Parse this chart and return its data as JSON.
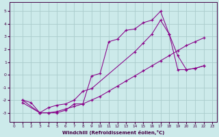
{
  "bg_color": "#cceaea",
  "grid_color": "#aacccc",
  "line_color": "#880088",
  "xlabel": "Windchill (Refroidissement éolien,°C)",
  "xlim": [
    -0.5,
    23.5
  ],
  "ylim": [
    -3.7,
    5.7
  ],
  "yticks": [
    -3,
    -2,
    -1,
    0,
    1,
    2,
    3,
    4,
    5
  ],
  "xticks": [
    0,
    1,
    2,
    3,
    4,
    5,
    6,
    7,
    8,
    9,
    10,
    11,
    12,
    13,
    14,
    15,
    16,
    17,
    18,
    19,
    20,
    21,
    22,
    23
  ],
  "line1_x": [
    1,
    2,
    3,
    4,
    5,
    6,
    7,
    8,
    9,
    10,
    11,
    12,
    13,
    14,
    15,
    16,
    17,
    18,
    19,
    20,
    21,
    22
  ],
  "line1_y": [
    -2.0,
    -2.2,
    -3.0,
    -3.0,
    -3.0,
    -2.8,
    -2.3,
    -2.3,
    -0.1,
    0.1,
    2.6,
    2.8,
    3.5,
    3.6,
    4.1,
    4.3,
    5.0,
    3.2,
    0.4,
    0.4,
    0.5,
    0.7
  ],
  "line2_x": [
    1,
    3,
    4,
    5,
    6,
    7,
    8,
    9,
    14,
    15,
    16,
    17,
    18,
    19,
    20,
    21,
    22
  ],
  "line2_y": [
    -2.0,
    -3.0,
    -2.6,
    -2.4,
    -2.3,
    -2.0,
    -1.3,
    -1.1,
    1.8,
    2.5,
    3.2,
    4.3,
    3.2,
    1.5,
    0.4,
    0.5,
    0.7
  ],
  "line3_x": [
    1,
    3,
    4,
    5,
    6,
    7,
    8,
    9,
    10,
    11,
    12,
    13,
    14,
    15,
    16,
    17,
    18,
    19,
    20,
    21,
    22
  ],
  "line3_y": [
    -2.2,
    -3.0,
    -3.0,
    -2.9,
    -2.7,
    -2.5,
    -2.3,
    -2.0,
    -1.7,
    -1.3,
    -0.9,
    -0.5,
    -0.1,
    0.3,
    0.7,
    1.1,
    1.5,
    1.9,
    2.3,
    2.6,
    2.9
  ]
}
